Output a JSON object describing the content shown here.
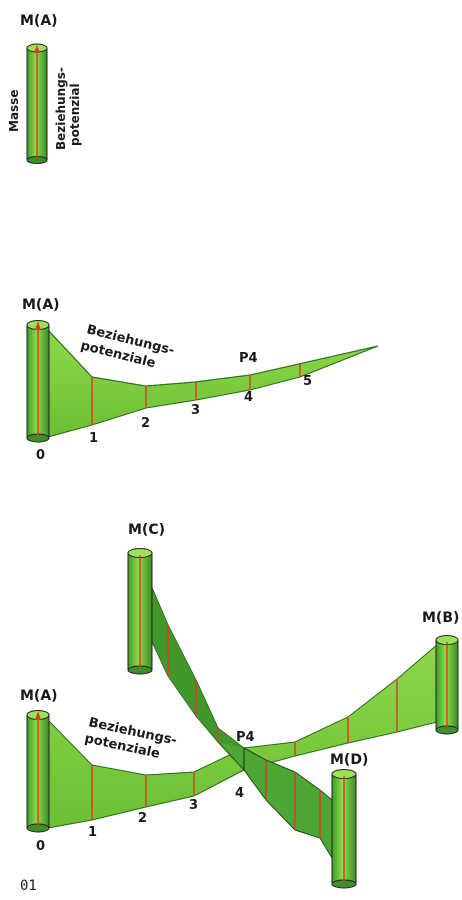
{
  "colors": {
    "green": "#7dcf3c",
    "green_dark": "#3d8f2a",
    "green_shadow": "#2f6e1f",
    "red": "#e03a26",
    "outline": "#222222"
  },
  "panel1": {
    "label_m": "M(A)",
    "label_masse": "Masse",
    "label_bez_1": "Beziehungs-",
    "label_bez_2": "potenzial"
  },
  "panel2": {
    "label_m": "M(A)",
    "label_bez_1": "Beziehungs-",
    "label_bez_2": "potenziale",
    "label_p4": "P4",
    "ticks": [
      "0",
      "1",
      "2",
      "3",
      "4",
      "5"
    ]
  },
  "panel3": {
    "label_ma": "M(A)",
    "label_mb": "M(B)",
    "label_mc": "M(C)",
    "label_md": "M(D)",
    "label_bez_1": "Beziehungs-",
    "label_bez_2": "potenziale",
    "label_p4": "P4",
    "ticks": [
      "0",
      "1",
      "2",
      "3",
      "4"
    ]
  },
  "figure_number": "01"
}
